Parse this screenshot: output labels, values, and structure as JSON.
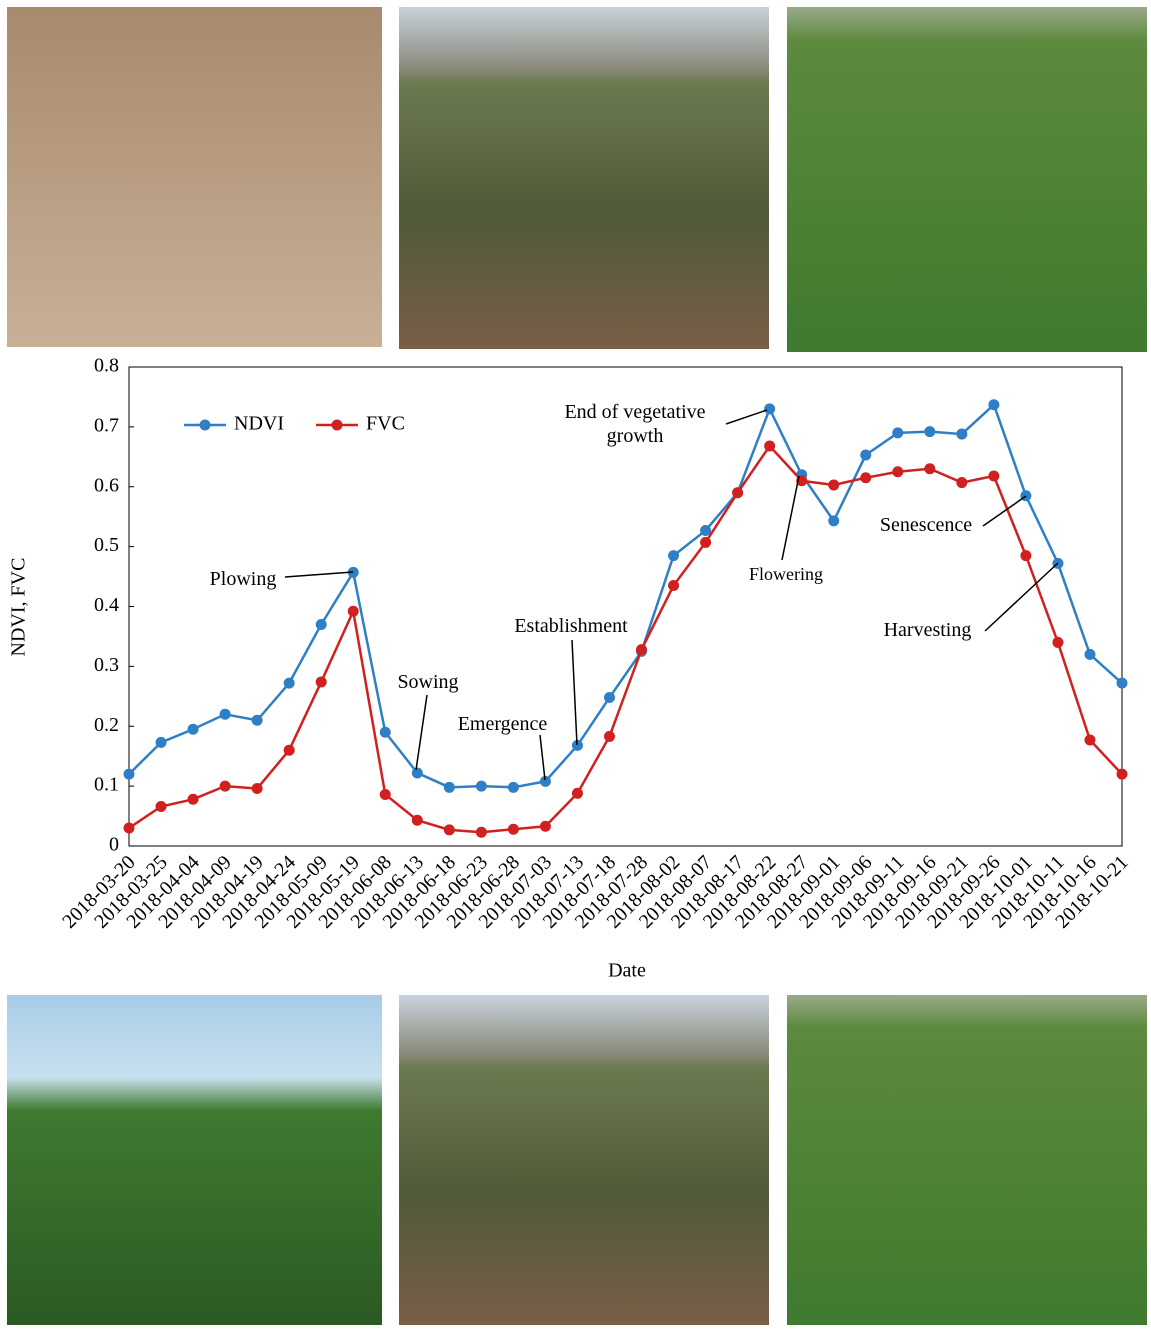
{
  "chart_data": {
    "type": "line",
    "xlabel": "Date",
    "ylabel": "NDVI, FVC",
    "categories": [
      "2018-03-20",
      "2018-03-25",
      "2018-04-04",
      "2018-04-09",
      "2018-04-19",
      "2018-04-24",
      "2018-05-09",
      "2018-05-19",
      "2018-06-08",
      "2018-06-13",
      "2018-06-18",
      "2018-06-23",
      "2018-06-28",
      "2018-07-03",
      "2018-07-13",
      "2018-07-18",
      "2018-07-28",
      "2018-08-02",
      "2018-08-07",
      "2018-08-17",
      "2018-08-22",
      "2018-08-27",
      "2018-09-01",
      "2018-09-06",
      "2018-09-11",
      "2018-09-16",
      "2018-09-21",
      "2018-09-26",
      "2018-10-01",
      "2018-10-11",
      "2018-10-16",
      "2018-10-21"
    ],
    "series": [
      {
        "name": "NDVI",
        "color": "#2f7fc6",
        "values": [
          0.12,
          0.173,
          0.195,
          0.22,
          0.21,
          0.272,
          0.37,
          0.457,
          0.19,
          0.122,
          0.098,
          0.1,
          0.098,
          0.108,
          0.168,
          0.248,
          0.325,
          0.485,
          0.527,
          0.59,
          0.73,
          0.62,
          0.543,
          0.653,
          0.69,
          0.692,
          0.688,
          0.737,
          0.585,
          0.472,
          0.32,
          0.272
        ]
      },
      {
        "name": "FVC",
        "color": "#d02020",
        "values": [
          0.03,
          0.066,
          0.078,
          0.1,
          0.096,
          0.16,
          0.274,
          0.392,
          0.086,
          0.043,
          0.027,
          0.023,
          0.028,
          0.033,
          0.088,
          0.183,
          0.328,
          0.435,
          0.507,
          0.59,
          0.668,
          0.61,
          0.603,
          0.615,
          0.625,
          0.63,
          0.607,
          0.618,
          0.485,
          0.34,
          0.177,
          0.12
        ]
      }
    ],
    "ylim": [
      0,
      0.8
    ],
    "yticks": [
      0,
      0.1,
      0.2,
      0.3,
      0.4,
      0.5,
      0.6,
      0.7,
      0.8
    ],
    "legend": "upper left",
    "annotations": [
      "Plowing",
      "Sowing",
      "Emergence",
      "Establishment",
      "End of vegetative growth",
      "Flowering",
      "Senescence",
      "Harvesting"
    ]
  }
}
